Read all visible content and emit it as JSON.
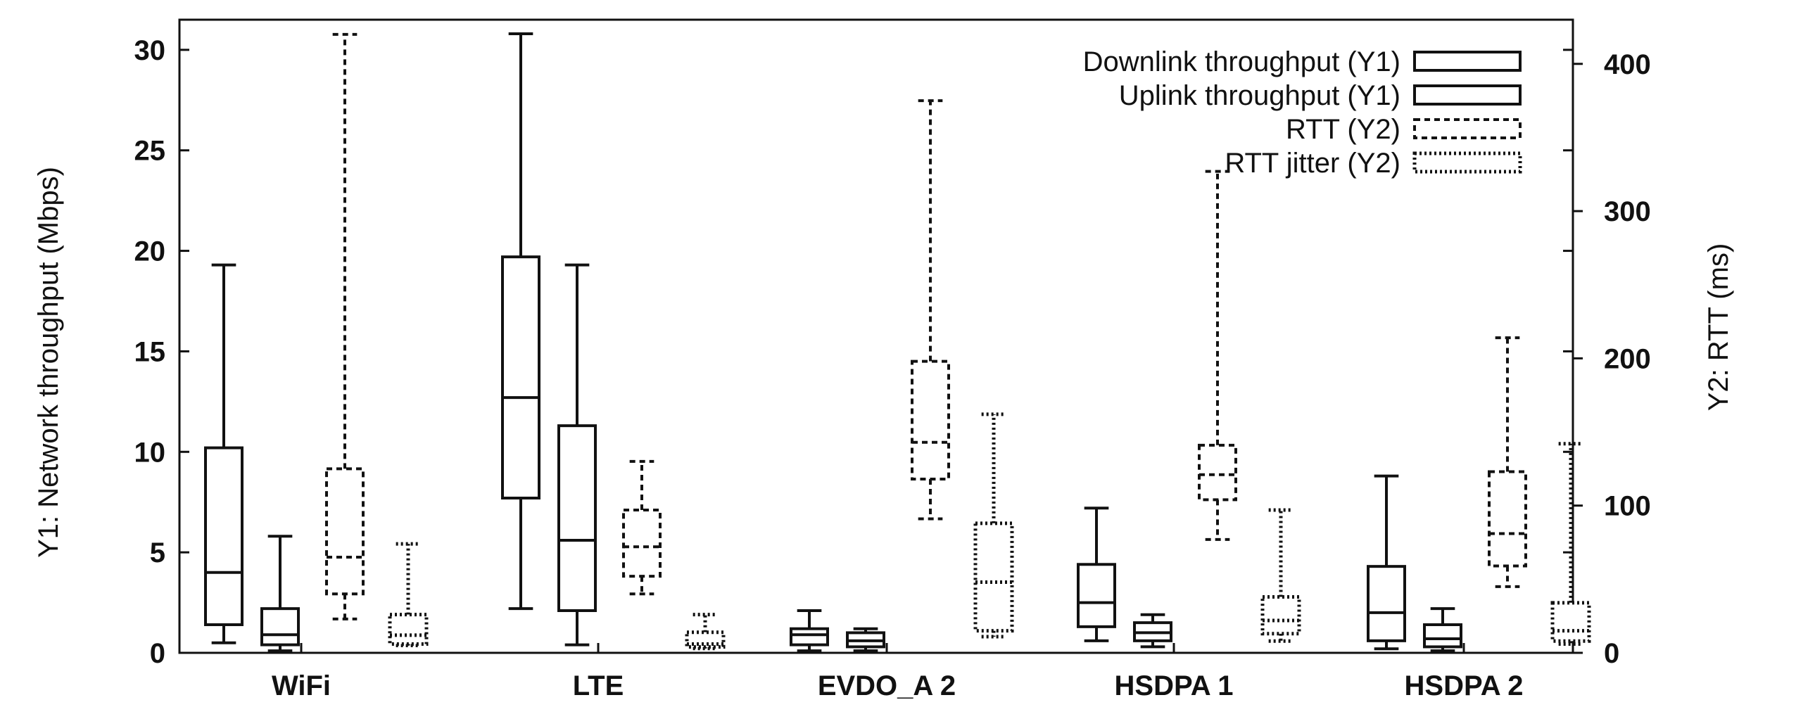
{
  "chart_data": {
    "type": "box",
    "categories": [
      "WiFi",
      "LTE",
      "EVDO_A 2",
      "HSDPA 1",
      "HSDPA 2"
    ],
    "y_axis": {
      "label": "Y1: Network throughput (Mbps)",
      "range": [
        0,
        31.5
      ],
      "ticks": [
        0,
        5,
        10,
        15,
        20,
        25,
        30
      ],
      "tick_labels": [
        "0",
        "5",
        "10",
        "15",
        "20",
        "25",
        "30"
      ]
    },
    "y2_axis": {
      "label": "Y2: RTT (ms)",
      "range": [
        0,
        430
      ],
      "ticks": [
        0,
        100,
        200,
        300,
        400
      ],
      "tick_labels": [
        "0",
        "100",
        "200",
        "300",
        "400"
      ]
    },
    "legend": {
      "placement": "top-right"
    },
    "series": [
      {
        "name": "Downlink throughput (Y1)",
        "axis": "y1",
        "style": "solid",
        "boxes": [
          {
            "min": 0.5,
            "q1": 1.4,
            "median": 4.0,
            "q3": 10.2,
            "max": 19.3
          },
          {
            "min": 2.2,
            "q1": 7.7,
            "median": 12.7,
            "q3": 19.7,
            "max": 30.8
          },
          {
            "min": 0.1,
            "q1": 0.4,
            "median": 0.9,
            "q3": 1.2,
            "max": 2.1
          },
          {
            "min": 0.6,
            "q1": 1.3,
            "median": 2.5,
            "q3": 4.4,
            "max": 7.2
          },
          {
            "min": 0.2,
            "q1": 0.6,
            "median": 2.0,
            "q3": 4.3,
            "max": 8.8
          }
        ]
      },
      {
        "name": "Uplink throughput (Y1)",
        "axis": "y1",
        "style": "solid",
        "boxes": [
          {
            "min": 0.1,
            "q1": 0.4,
            "median": 0.9,
            "q3": 2.2,
            "max": 5.8
          },
          {
            "min": 0.4,
            "q1": 2.1,
            "median": 5.6,
            "q3": 11.3,
            "max": 19.3
          },
          {
            "min": 0.1,
            "q1": 0.3,
            "median": 0.6,
            "q3": 1.0,
            "max": 1.2
          },
          {
            "min": 0.3,
            "q1": 0.6,
            "median": 1.0,
            "q3": 1.5,
            "max": 1.9
          },
          {
            "min": 0.1,
            "q1": 0.3,
            "median": 0.7,
            "q3": 1.4,
            "max": 2.2
          }
        ]
      },
      {
        "name": "RTT (Y2)",
        "axis": "y2",
        "style": "dashed",
        "boxes": [
          {
            "min": 23,
            "q1": 40,
            "median": 65,
            "q3": 125,
            "max": 420
          },
          {
            "min": 40,
            "q1": 52,
            "median": 72,
            "q3": 97,
            "max": 130
          },
          {
            "min": 91,
            "q1": 118,
            "median": 143,
            "q3": 198,
            "max": 375
          },
          {
            "min": 77,
            "q1": 104,
            "median": 121,
            "q3": 141,
            "max": 327
          },
          {
            "min": 45,
            "q1": 59,
            "median": 81,
            "q3": 123,
            "max": 214
          }
        ]
      },
      {
        "name": "RTT jitter (Y2)",
        "axis": "y2",
        "style": "dotted",
        "boxes": [
          {
            "min": 5,
            "q1": 6,
            "median": 12,
            "q3": 26,
            "max": 74
          },
          {
            "min": 3,
            "q1": 4,
            "median": 6,
            "q3": 14,
            "max": 26
          },
          {
            "min": 11,
            "q1": 15,
            "median": 48,
            "q3": 88,
            "max": 162
          },
          {
            "min": 8,
            "q1": 13,
            "median": 22,
            "q3": 38,
            "max": 97
          },
          {
            "min": 6,
            "q1": 8,
            "median": 15,
            "q3": 34,
            "max": 142
          }
        ]
      }
    ]
  }
}
